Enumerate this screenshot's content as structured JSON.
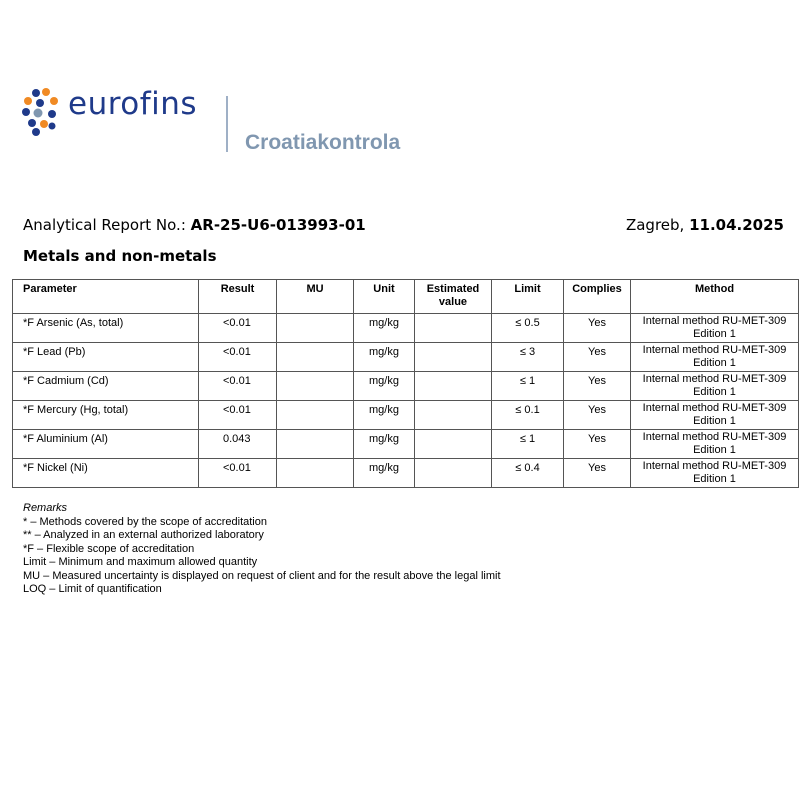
{
  "header": {
    "brand": "eurofins",
    "subbrand": "Croatiakontrola",
    "report_label": "Analytical Report No.: ",
    "report_number": "AR-25-U6-013993-01",
    "city": "Zagreb, ",
    "date": "11.04.2025",
    "section_title": "Metals and non-metals"
  },
  "table": {
    "columns": [
      "Parameter",
      "Result",
      "MU",
      "Unit",
      "Estimated value",
      "Limit",
      "Complies",
      "Method"
    ],
    "rows": [
      {
        "parameter": "*F Arsenic (As, total)",
        "result": "<0.01",
        "mu": "",
        "unit": "mg/kg",
        "estimated": "",
        "limit": "≤ 0.5",
        "complies": "Yes",
        "method": "Internal method RU-MET-309",
        "edition": "Edition 1"
      },
      {
        "parameter": "*F Lead (Pb)",
        "result": "<0.01",
        "mu": "",
        "unit": "mg/kg",
        "estimated": "",
        "limit": "≤ 3",
        "complies": "Yes",
        "method": "Internal method RU-MET-309",
        "edition": "Edition 1"
      },
      {
        "parameter": "*F Cadmium (Cd)",
        "result": "<0.01",
        "mu": "",
        "unit": "mg/kg",
        "estimated": "",
        "limit": "≤ 1",
        "complies": "Yes",
        "method": "Internal method RU-MET-309",
        "edition": "Edition 1"
      },
      {
        "parameter": "*F Mercury (Hg, total)",
        "result": "<0.01",
        "mu": "",
        "unit": "mg/kg",
        "estimated": "",
        "limit": "≤ 0.1",
        "complies": "Yes",
        "method": "Internal method RU-MET-309",
        "edition": "Edition 1"
      },
      {
        "parameter": "*F Aluminium (Al)",
        "result": "0.043",
        "mu": "",
        "unit": "mg/kg",
        "estimated": "",
        "limit": "≤ 1",
        "complies": "Yes",
        "method": "Internal method RU-MET-309",
        "edition": "Edition 1"
      },
      {
        "parameter": "*F Nickel (Ni)",
        "result": "<0.01",
        "mu": "",
        "unit": "mg/kg",
        "estimated": "",
        "limit": "≤ 0.4",
        "complies": "Yes",
        "method": "Internal method RU-MET-309",
        "edition": "Edition 1"
      }
    ]
  },
  "remarks": {
    "heading": "Remarks",
    "lines": [
      "* – Methods covered by the scope of accreditation",
      "** – Analyzed in an external authorized laboratory",
      "*F – Flexible scope of accreditation",
      "Limit – Minimum and maximum allowed quantity",
      "MU – Measured uncertainty is displayed on request of client and for the result above the legal limit",
      "LOQ – Limit of quantification"
    ]
  },
  "colors": {
    "brand_blue": "#1f3a8a",
    "brand_orange": "#f08a24",
    "sub_gray": "#8097b0"
  }
}
